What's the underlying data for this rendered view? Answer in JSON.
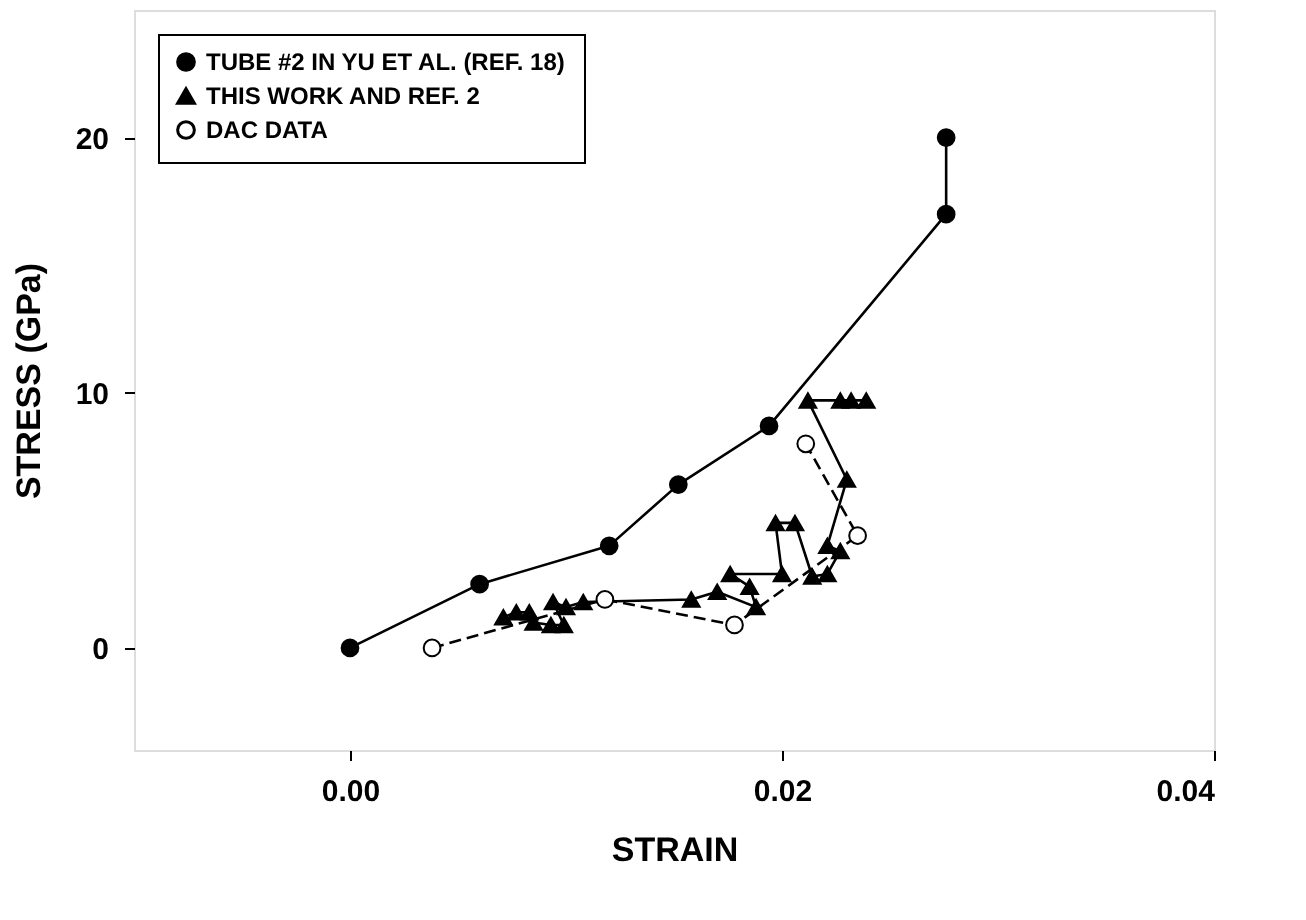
{
  "chart_data": {
    "type": "line",
    "xlabel": "STRAIN",
    "ylabel": "STRESS (GPa)",
    "xlim": [
      -0.01,
      0.04
    ],
    "xticks": [
      {
        "value": 0,
        "label": "0.00"
      },
      0.02,
      {
        "value": 0.04,
        "label": "0.04"
      }
    ],
    "ylim": [
      -4,
      25
    ],
    "yticks": [
      0,
      10,
      20
    ],
    "grid": false,
    "legend": "top left",
    "series": [
      {
        "name": "TUBE #2 IN YU ET AL. (REF. 18)",
        "color": "#000000",
        "marker": "circle",
        "line_style": "solid",
        "x": [
          0,
          0.006,
          0.012,
          0.0152,
          0.0194,
          0.0276,
          0.0276
        ],
        "values": [
          0,
          2.5,
          4.0,
          6.4,
          8.7,
          17.0,
          20.0
        ]
      },
      {
        "name": "THIS WORK AND REF. 2",
        "color": "#000000",
        "marker": "triangle",
        "line_style": "solid",
        "x": [
          0.0071,
          0.0077,
          0.0083,
          0.0085,
          0.0093,
          0.0099,
          0.0094,
          0.01,
          0.0108,
          0.0158,
          0.017,
          0.0188,
          0.0185,
          0.0176,
          0.02,
          0.0197,
          0.0206,
          0.0214,
          0.0221,
          0.0227,
          0.0221,
          0.023,
          0.0212,
          0.0227,
          0.0232,
          0.0239
        ],
        "values": [
          1.2,
          1.4,
          1.4,
          1.0,
          0.9,
          0.9,
          1.8,
          1.6,
          1.8,
          1.9,
          2.2,
          1.6,
          2.4,
          2.9,
          2.9,
          4.9,
          4.9,
          2.8,
          2.9,
          3.8,
          4.0,
          6.6,
          9.7,
          9.7,
          9.7,
          9.7
        ]
      },
      {
        "name": "DAC DATA",
        "color": "#ffffff",
        "marker": "circle",
        "line_style": "dashed",
        "x": [
          0.0038,
          0.0118,
          0.0178,
          0.0235,
          0.0211
        ],
        "values": [
          0.0,
          1.9,
          0.9,
          4.4,
          8.0
        ]
      }
    ]
  }
}
